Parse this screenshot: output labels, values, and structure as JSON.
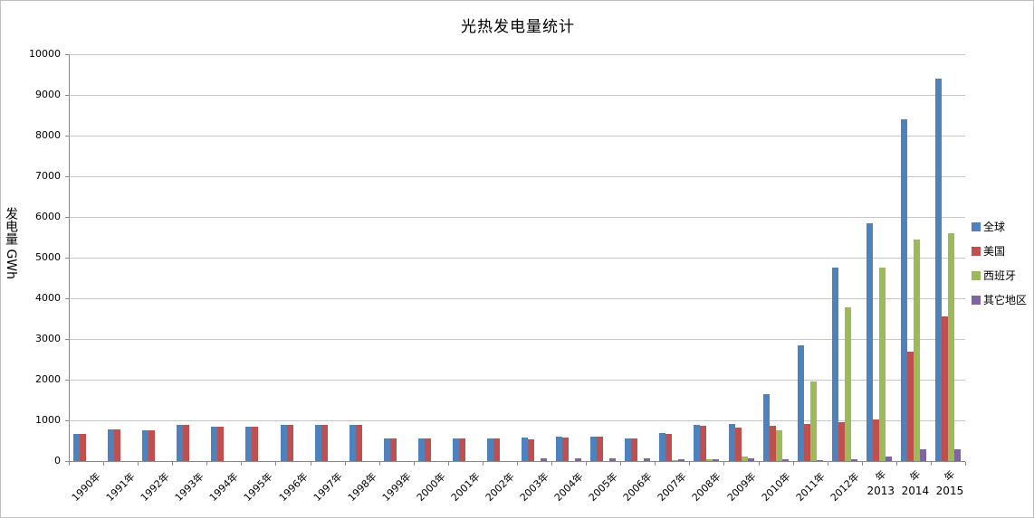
{
  "chart_data": {
    "type": "bar",
    "title": "光热发电量统计",
    "ylabel": "发电量 GWh",
    "xlabel": "",
    "ylim": [
      0,
      10000
    ],
    "ytick_step": 1000,
    "grid": true,
    "legend_position": "right",
    "categories": [
      "1990年",
      "1991年",
      "1992年",
      "1993年",
      "1994年",
      "1995年",
      "1996年",
      "1997年",
      "1998年",
      "1999年",
      "2000年",
      "2001年",
      "2002年",
      "2003年",
      "2004年",
      "2005年",
      "2006年",
      "2007年",
      "2008年",
      "2009年",
      "2010年",
      "2011年",
      "2012年",
      "2013年",
      "2014年",
      "2015年"
    ],
    "wrapped_label_indices": [
      23,
      24,
      25
    ],
    "wrapped_label_suffix": "年",
    "wrapped_label_numbers": [
      "2013",
      "2014",
      "2015"
    ],
    "series": [
      {
        "name": "全球",
        "color": "#4F81BD",
        "values": [
          665,
          780,
          745,
          890,
          840,
          840,
          890,
          890,
          890,
          550,
          545,
          560,
          560,
          570,
          600,
          600,
          555,
          690,
          890,
          910,
          1650,
          2850,
          4750,
          5850,
          8400,
          9400
        ]
      },
      {
        "name": "美国",
        "color": "#C0504D",
        "values": [
          665,
          780,
          745,
          890,
          840,
          840,
          890,
          890,
          890,
          550,
          545,
          560,
          560,
          530,
          575,
          590,
          545,
          670,
          870,
          820,
          860,
          910,
          955,
          1020,
          2700,
          3550
        ]
      },
      {
        "name": "西班牙",
        "color": "#9BBB59",
        "values": [
          0,
          0,
          0,
          0,
          0,
          0,
          0,
          0,
          0,
          0,
          0,
          0,
          0,
          0,
          0,
          0,
          0,
          30,
          40,
          120,
          760,
          1960,
          3780,
          4760,
          5450,
          5600
        ]
      },
      {
        "name": "其它地区",
        "color": "#8064A2",
        "values": [
          0,
          0,
          0,
          0,
          0,
          0,
          0,
          0,
          0,
          0,
          0,
          0,
          0,
          60,
          60,
          60,
          60,
          50,
          50,
          60,
          50,
          30,
          50,
          110,
          290,
          290
        ]
      }
    ],
    "colors": {
      "gridline": "#C6C6C6",
      "axis": "#898989",
      "text": "#000000",
      "background": "#FFFFFF"
    }
  }
}
